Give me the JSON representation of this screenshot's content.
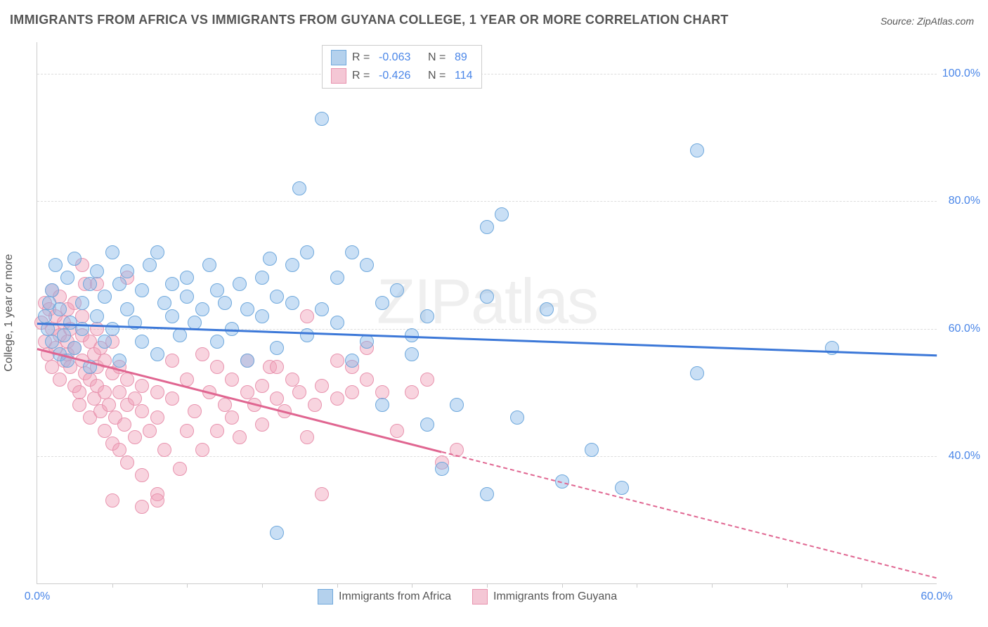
{
  "title": "IMMIGRANTS FROM AFRICA VS IMMIGRANTS FROM GUYANA COLLEGE, 1 YEAR OR MORE CORRELATION CHART",
  "source": "Source: ZipAtlas.com",
  "watermark": "ZIPatlas",
  "chart": {
    "type": "scatter",
    "ylabel": "College, 1 year or more",
    "xlim": [
      0,
      60
    ],
    "ylim": [
      20,
      105
    ],
    "xticks": [
      {
        "pos": 0,
        "label": "0.0%"
      },
      {
        "pos": 60,
        "label": "60.0%"
      }
    ],
    "xtick_minor": [
      5,
      10,
      15,
      20,
      25,
      30,
      35,
      40,
      45,
      50,
      55
    ],
    "yticks": [
      {
        "pos": 40,
        "label": "40.0%"
      },
      {
        "pos": 60,
        "label": "60.0%"
      },
      {
        "pos": 80,
        "label": "80.0%"
      },
      {
        "pos": 100,
        "label": "100.0%"
      }
    ],
    "grid_color": "#dddddd",
    "background_color": "#ffffff",
    "series": [
      {
        "name": "Immigrants from Africa",
        "fill": "rgba(135,183,232,0.45)",
        "stroke": "#6fa8dc",
        "line_color": "#3c78d8",
        "swatch_fill": "#b4d1ed",
        "swatch_stroke": "#6fa8dc",
        "marker_radius": 9,
        "R": "-0.063",
        "N": "89",
        "regression": {
          "x1": 0,
          "y1": 61,
          "x2": 60,
          "y2": 56,
          "solid_until_x": 60
        },
        "points": [
          [
            0.5,
            62
          ],
          [
            0.7,
            60
          ],
          [
            0.8,
            64
          ],
          [
            1,
            58
          ],
          [
            1,
            66
          ],
          [
            1.2,
            70
          ],
          [
            1.5,
            56
          ],
          [
            1.5,
            63
          ],
          [
            1.8,
            59
          ],
          [
            2,
            68
          ],
          [
            2,
            55
          ],
          [
            2.2,
            61
          ],
          [
            2.5,
            71
          ],
          [
            2.5,
            57
          ],
          [
            3,
            64
          ],
          [
            3,
            60
          ],
          [
            3.5,
            67
          ],
          [
            3.5,
            54
          ],
          [
            4,
            69
          ],
          [
            4,
            62
          ],
          [
            4.5,
            58
          ],
          [
            4.5,
            65
          ],
          [
            5,
            60
          ],
          [
            5,
            72
          ],
          [
            5.5,
            67
          ],
          [
            5.5,
            55
          ],
          [
            6,
            63
          ],
          [
            6,
            69
          ],
          [
            6.5,
            61
          ],
          [
            7,
            66
          ],
          [
            7,
            58
          ],
          [
            7.5,
            70
          ],
          [
            8,
            72
          ],
          [
            8,
            56
          ],
          [
            8.5,
            64
          ],
          [
            9,
            62
          ],
          [
            9,
            67
          ],
          [
            9.5,
            59
          ],
          [
            10,
            65
          ],
          [
            10,
            68
          ],
          [
            10.5,
            61
          ],
          [
            11,
            63
          ],
          [
            11.5,
            70
          ],
          [
            12,
            66
          ],
          [
            12,
            58
          ],
          [
            12.5,
            64
          ],
          [
            13,
            60
          ],
          [
            13.5,
            67
          ],
          [
            14,
            55
          ],
          [
            14,
            63
          ],
          [
            15,
            62
          ],
          [
            15,
            68
          ],
          [
            15.5,
            71
          ],
          [
            16,
            57
          ],
          [
            16,
            65
          ],
          [
            17,
            64
          ],
          [
            17,
            70
          ],
          [
            17.5,
            82
          ],
          [
            18,
            59
          ],
          [
            18,
            72
          ],
          [
            19,
            63
          ],
          [
            19,
            93
          ],
          [
            20,
            61
          ],
          [
            20,
            68
          ],
          [
            21,
            72
          ],
          [
            21,
            55
          ],
          [
            22,
            70
          ],
          [
            22,
            58
          ],
          [
            23,
            48
          ],
          [
            23,
            64
          ],
          [
            24,
            66
          ],
          [
            25,
            59
          ],
          [
            25,
            56
          ],
          [
            26,
            45
          ],
          [
            26,
            62
          ],
          [
            27,
            38
          ],
          [
            28,
            48
          ],
          [
            30,
            34
          ],
          [
            30,
            76
          ],
          [
            30,
            65
          ],
          [
            31,
            78
          ],
          [
            32,
            46
          ],
          [
            34,
            63
          ],
          [
            35,
            36
          ],
          [
            37,
            41
          ],
          [
            39,
            35
          ],
          [
            44,
            88
          ],
          [
            44,
            53
          ],
          [
            53,
            57
          ],
          [
            16,
            28
          ]
        ]
      },
      {
        "name": "Immigrants from Guyana",
        "fill": "rgba(240,160,185,0.45)",
        "stroke": "#e893ae",
        "line_color": "#e06691",
        "swatch_fill": "#f4c7d5",
        "swatch_stroke": "#e893ae",
        "marker_radius": 9,
        "R": "-0.426",
        "N": "114",
        "regression": {
          "x1": 0,
          "y1": 57,
          "x2": 60,
          "y2": 21,
          "solid_until_x": 27
        },
        "points": [
          [
            0.3,
            61
          ],
          [
            0.5,
            58
          ],
          [
            0.5,
            64
          ],
          [
            0.7,
            56
          ],
          [
            0.8,
            63
          ],
          [
            1,
            60
          ],
          [
            1,
            54
          ],
          [
            1,
            66
          ],
          [
            1.2,
            57
          ],
          [
            1.2,
            62
          ],
          [
            1.5,
            59
          ],
          [
            1.5,
            52
          ],
          [
            1.5,
            65
          ],
          [
            1.8,
            55
          ],
          [
            1.8,
            61
          ],
          [
            2,
            56
          ],
          [
            2,
            58
          ],
          [
            2,
            63
          ],
          [
            2.2,
            54
          ],
          [
            2.2,
            60
          ],
          [
            2.5,
            51
          ],
          [
            2.5,
            57
          ],
          [
            2.5,
            64
          ],
          [
            2.8,
            48
          ],
          [
            2.8,
            50
          ],
          [
            3,
            55
          ],
          [
            3,
            59
          ],
          [
            3,
            62
          ],
          [
            3.2,
            53
          ],
          [
            3.2,
            67
          ],
          [
            3.5,
            46
          ],
          [
            3.5,
            52
          ],
          [
            3.5,
            58
          ],
          [
            3.8,
            49
          ],
          [
            3.8,
            56
          ],
          [
            4,
            51
          ],
          [
            4,
            54
          ],
          [
            4,
            60
          ],
          [
            4.2,
            47
          ],
          [
            4.2,
            57
          ],
          [
            4.5,
            44
          ],
          [
            4.5,
            50
          ],
          [
            4.5,
            55
          ],
          [
            4.8,
            48
          ],
          [
            5,
            42
          ],
          [
            5,
            53
          ],
          [
            5,
            58
          ],
          [
            5.2,
            46
          ],
          [
            5.5,
            41
          ],
          [
            5.5,
            50
          ],
          [
            5.5,
            54
          ],
          [
            5.8,
            45
          ],
          [
            6,
            39
          ],
          [
            6,
            48
          ],
          [
            6,
            52
          ],
          [
            6.5,
            43
          ],
          [
            6.5,
            49
          ],
          [
            7,
            37
          ],
          [
            7,
            47
          ],
          [
            7,
            51
          ],
          [
            7.5,
            44
          ],
          [
            8,
            34
          ],
          [
            8,
            46
          ],
          [
            8,
            50
          ],
          [
            8.5,
            41
          ],
          [
            9,
            49
          ],
          [
            9,
            55
          ],
          [
            9.5,
            38
          ],
          [
            10,
            44
          ],
          [
            10,
            52
          ],
          [
            10.5,
            47
          ],
          [
            11,
            56
          ],
          [
            11,
            41
          ],
          [
            11.5,
            50
          ],
          [
            12,
            54
          ],
          [
            12,
            44
          ],
          [
            12.5,
            48
          ],
          [
            13,
            52
          ],
          [
            13,
            46
          ],
          [
            13.5,
            43
          ],
          [
            14,
            50
          ],
          [
            14,
            55
          ],
          [
            14.5,
            48
          ],
          [
            15,
            51
          ],
          [
            15,
            45
          ],
          [
            15.5,
            54
          ],
          [
            16,
            49
          ],
          [
            16,
            54
          ],
          [
            16.5,
            47
          ],
          [
            17,
            52
          ],
          [
            17.5,
            50
          ],
          [
            18,
            43
          ],
          [
            18,
            62
          ],
          [
            18.5,
            48
          ],
          [
            19,
            34
          ],
          [
            19,
            51
          ],
          [
            20,
            55
          ],
          [
            20,
            49
          ],
          [
            21,
            50
          ],
          [
            21,
            54
          ],
          [
            22,
            57
          ],
          [
            22,
            52
          ],
          [
            23,
            50
          ],
          [
            24,
            44
          ],
          [
            25,
            50
          ],
          [
            26,
            52
          ],
          [
            27,
            39
          ],
          [
            28,
            41
          ],
          [
            5,
            33
          ],
          [
            7,
            32
          ],
          [
            8,
            33
          ],
          [
            3,
            70
          ],
          [
            4,
            67
          ],
          [
            6,
            68
          ]
        ]
      }
    ]
  },
  "bottom_legend": {
    "items": [
      {
        "label": "Immigrants from Africa",
        "key": "africa"
      },
      {
        "label": "Immigrants from Guyana",
        "key": "guyana"
      }
    ]
  }
}
